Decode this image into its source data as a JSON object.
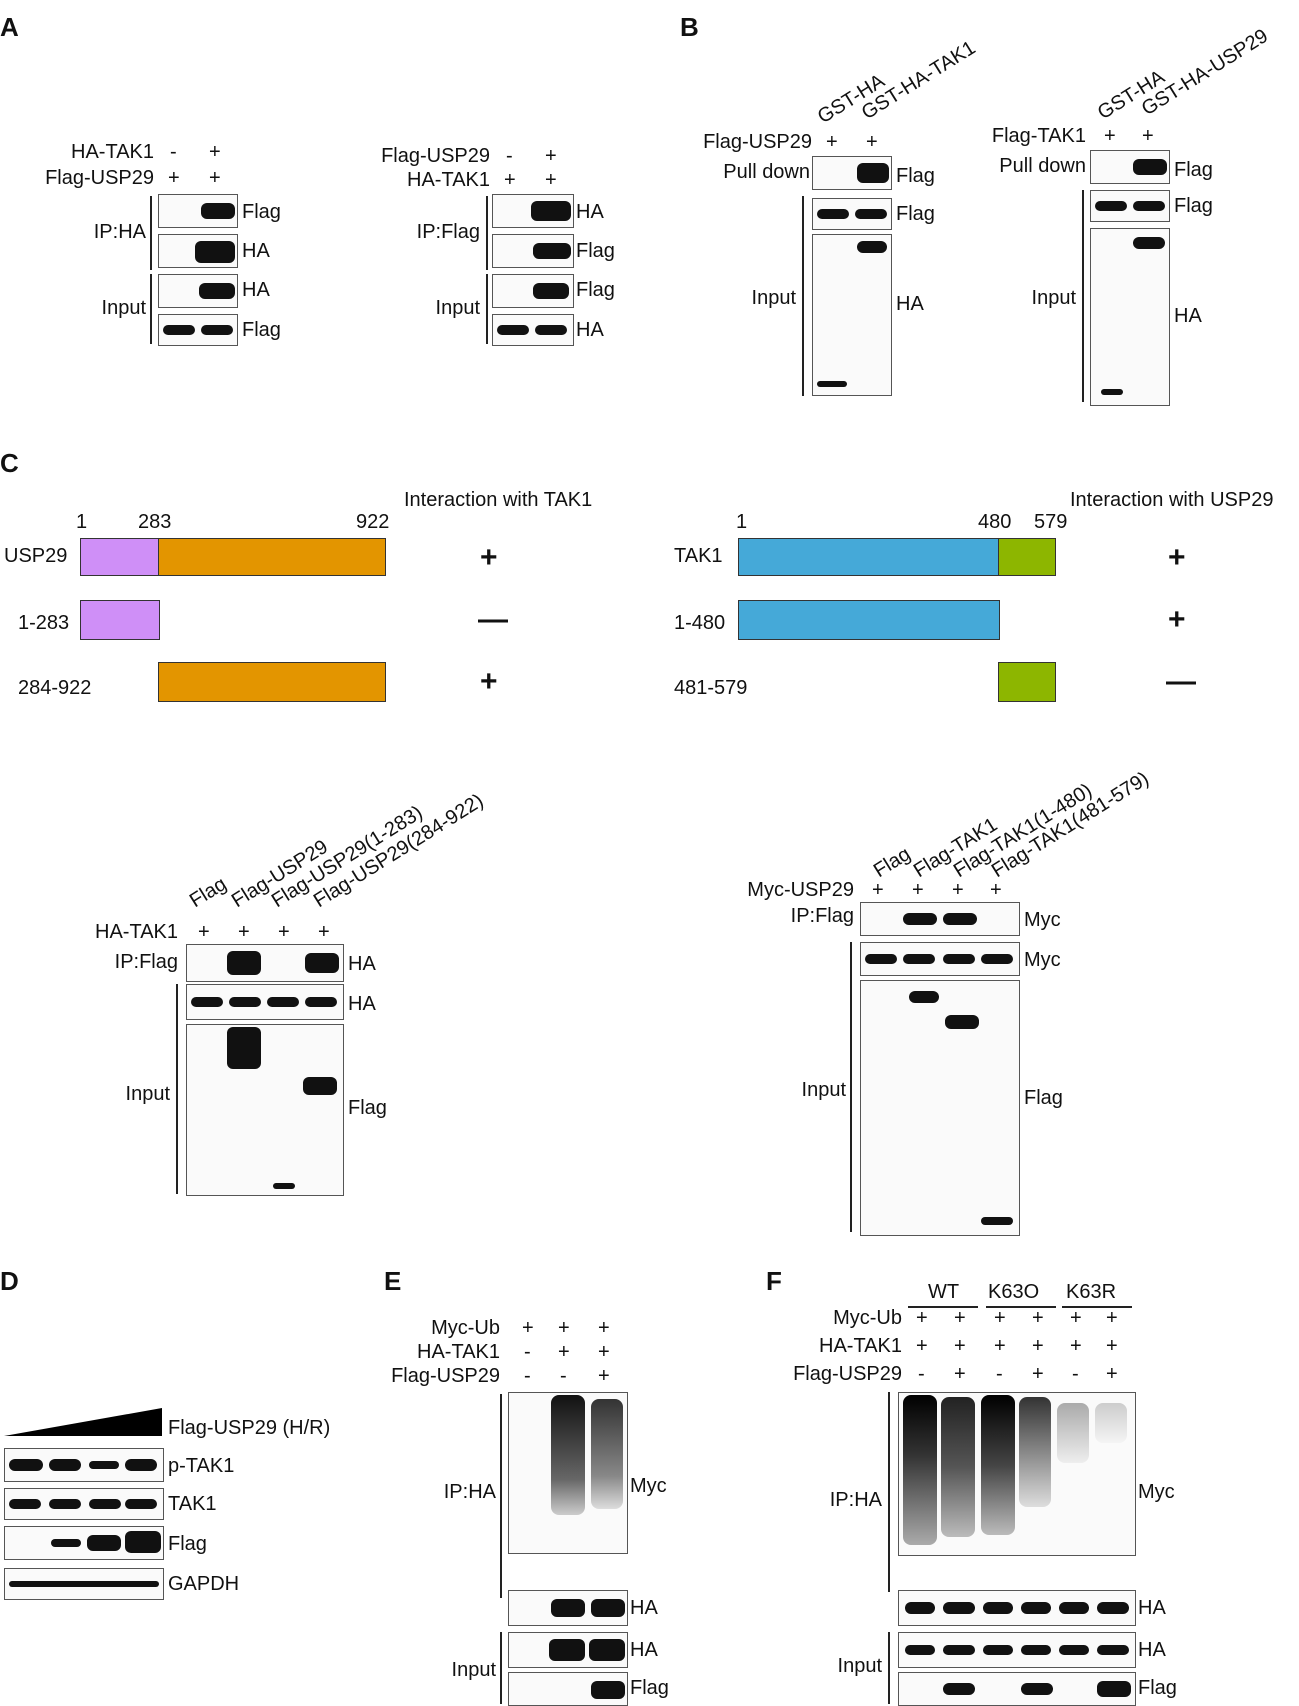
{
  "panels": {
    "A": "A",
    "B": "B",
    "C": "C",
    "D": "D",
    "E": "E",
    "F": "F"
  },
  "panelA": {
    "left": {
      "rows": [
        {
          "label": "HA-TAK1",
          "marks": [
            "-",
            "+"
          ]
        },
        {
          "label": "Flag-USP29",
          "marks": [
            "+",
            "+"
          ]
        }
      ],
      "groups": [
        "IP:HA",
        "Input"
      ],
      "blots": [
        "Flag",
        "HA",
        "HA",
        "Flag"
      ]
    },
    "right": {
      "rows": [
        {
          "label": "Flag-USP29",
          "marks": [
            "-",
            "+"
          ]
        },
        {
          "label": "HA-TAK1",
          "marks": [
            "+",
            "+"
          ]
        }
      ],
      "groups": [
        "IP:Flag",
        "Input"
      ],
      "blots": [
        "HA",
        "Flag",
        "Flag",
        "HA"
      ]
    }
  },
  "panelB": {
    "left": {
      "lanes": [
        "GST-HA",
        "GST-HA-TAK1"
      ],
      "row": {
        "label": "Flag-USP29",
        "marks": [
          "+",
          "+"
        ]
      },
      "pulldown": "Pull down",
      "input": "Input",
      "blots": [
        "Flag",
        "Flag",
        "HA"
      ]
    },
    "right": {
      "lanes": [
        "GST-HA",
        "GST-HA-USP29"
      ],
      "row": {
        "label": "Flag-TAK1",
        "marks": [
          "+",
          "+"
        ]
      },
      "pulldown": "Pull down",
      "input": "Input",
      "blots": [
        "Flag",
        "Flag",
        "HA"
      ]
    }
  },
  "panelC": {
    "left": {
      "header": "Interaction with TAK1",
      "ticks": [
        "1",
        "283",
        "922"
      ],
      "constructs": [
        {
          "name": "USP29",
          "result": "+"
        },
        {
          "name": "1-283",
          "result": "—"
        },
        {
          "name": "284-922",
          "result": "+"
        }
      ],
      "colors": {
        "n": "#cf8ff7",
        "c": "#e39500"
      }
    },
    "right": {
      "header": "Interaction with USP29",
      "ticks": [
        "1",
        "480",
        "579"
      ],
      "constructs": [
        {
          "name": "TAK1",
          "result": "+"
        },
        {
          "name": "1-480",
          "result": "+"
        },
        {
          "name": "481-579",
          "result": "—"
        }
      ],
      "colors": {
        "n": "#45a9d8",
        "c": "#8db600"
      }
    },
    "blotLeft": {
      "lanes": [
        "Flag",
        "Flag-USP29",
        "Flag-USP29(1-283)",
        "Flag-USP29(284-922)"
      ],
      "row": {
        "label": "HA-TAK1",
        "marks": [
          "+",
          "+",
          "+",
          "+"
        ]
      },
      "groups": [
        "IP:Flag",
        "Input"
      ],
      "blots": [
        "HA",
        "HA",
        "Flag"
      ]
    },
    "blotRight": {
      "lanes": [
        "Flag",
        "Flag-TAK1",
        "Flag-TAK1(1-480)",
        "Flag-TAK1(481-579)"
      ],
      "row": {
        "label": "Myc-USP29",
        "marks": [
          "+",
          "+",
          "+",
          "+"
        ]
      },
      "groups": [
        "IP:Flag",
        "Input"
      ],
      "blots": [
        "Myc",
        "Myc",
        "Flag"
      ]
    }
  },
  "panelD": {
    "treatment": "Flag-USP29 (H/R)",
    "blots": [
      "p-TAK1",
      "TAK1",
      "Flag",
      "GAPDH"
    ]
  },
  "panelE": {
    "rows": [
      {
        "label": "Myc-Ub",
        "marks": [
          "+",
          "+",
          "+"
        ]
      },
      {
        "label": "HA-TAK1",
        "marks": [
          "-",
          "+",
          "+"
        ]
      },
      {
        "label": "Flag-USP29",
        "marks": [
          "-",
          "-",
          "+"
        ]
      }
    ],
    "groups": [
      "IP:HA",
      "Input"
    ],
    "blots": [
      "Myc",
      "HA",
      "HA",
      "Flag"
    ]
  },
  "panelF": {
    "conditions": [
      "WT",
      "K63O",
      "K63R"
    ],
    "rows": [
      {
        "label": "Myc-Ub",
        "marks": [
          "+",
          "+",
          "+",
          "+",
          "+",
          "+"
        ]
      },
      {
        "label": "HA-TAK1",
        "marks": [
          "+",
          "+",
          "+",
          "+",
          "+",
          "+"
        ]
      },
      {
        "label": "Flag-USP29",
        "marks": [
          "-",
          "+",
          "-",
          "+",
          "-",
          "+"
        ]
      }
    ],
    "groups": [
      "IP:HA",
      "Input"
    ],
    "blots": [
      "Myc",
      "HA",
      "HA",
      "Flag"
    ]
  }
}
